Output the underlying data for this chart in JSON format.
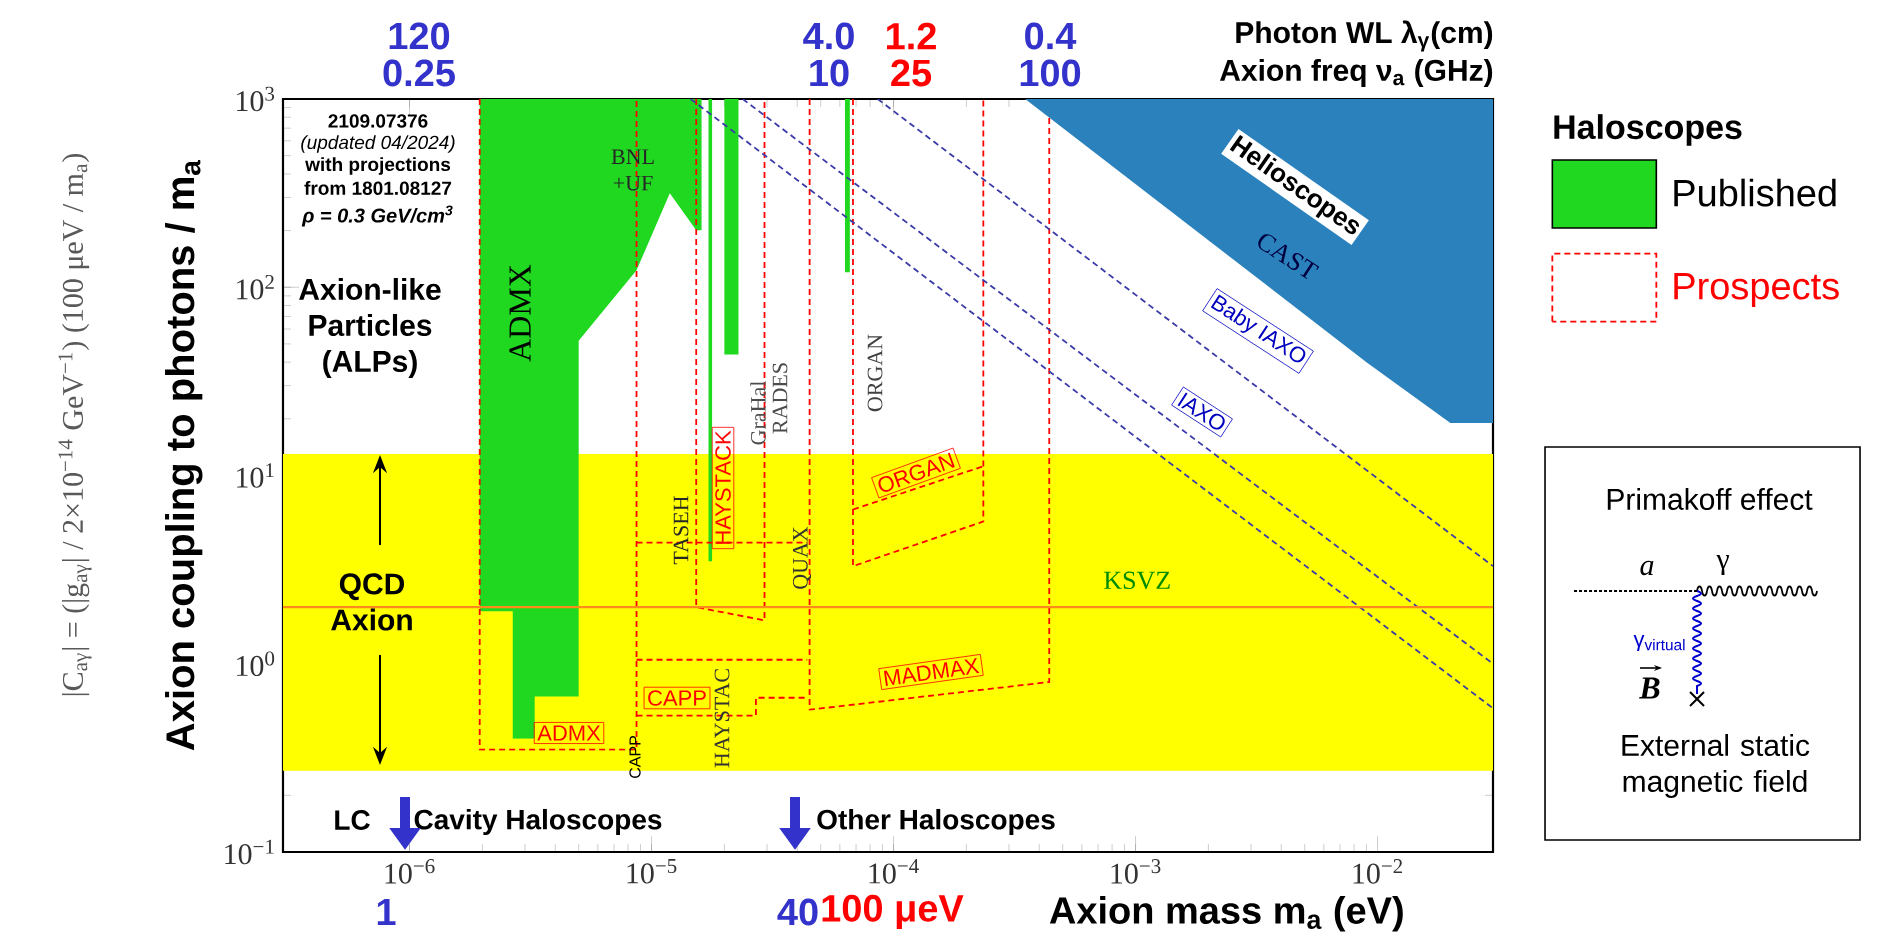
{
  "chart_data": {
    "type": "area",
    "xlabel": "Axion mass m$_{a}$ (eV)",
    "ylabel": "Axion coupling to photons / m$_{a}$",
    "legend_title": "Haloscopes",
    "legend": "right",
    "log": "xy",
    "marker": "none",
    "xlim": [
      3e-07,
      0.03
    ],
    "xticks": [
      {
        "value": 1e-06,
        "label": "10$^{−6}$"
      },
      {
        "value": 1e-05,
        "label": "10$^{−5}$"
      },
      {
        "value": 0.0001,
        "label": "10$^{−4}$"
      },
      {
        "value": 0.001,
        "label": "10$^{−3}$"
      },
      {
        "value": 0.01,
        "label": "10$^{−2}$"
      }
    ],
    "ylim": [
      0.1,
      1000
    ],
    "yticks": [
      {
        "value": 0.1,
        "label": "10$^{−1}$"
      },
      {
        "value": 1,
        "label": "10$^{0}$"
      },
      {
        "value": 10,
        "label": "10$^{1}$"
      },
      {
        "value": 100,
        "label": "10$^{2}$"
      },
      {
        "value": 1000,
        "label": "10$^{3}$"
      }
    ],
    "series": [
      {
        "name": "Published",
        "color": "#20d820",
        "x": [
          1.95e-06,
          1.95e-06,
          2.67e-06,
          2.67e-06,
          3.29e-06,
          3.29e-06,
          5e-06,
          5e-06,
          8.67e-06,
          1.19e-05,
          1.53e-05,
          1.61e-05,
          1.61e-05
        ],
        "values": [
          1000,
          1.9,
          1.9,
          0.4,
          0.4,
          0.67,
          0.67,
          52,
          123,
          316,
          201,
          201,
          1000
        ]
      },
      {
        "color": "#20d820",
        "x": [
          1.72e-05,
          1.72e-05,
          1.78e-05,
          1.78e-05
        ],
        "values": [
          1000,
          3.5,
          3.5,
          1000
        ]
      },
      {
        "color": "#20d820",
        "x": [
          2e-05,
          2e-05,
          2.29e-05,
          2.29e-05
        ],
        "values": [
          1000,
          44,
          44,
          1000
        ]
      },
      {
        "color": "#20d820",
        "x": [
          6.3e-05,
          6.3e-05,
          6.6e-05,
          6.6e-05
        ],
        "values": [
          1000,
          120,
          120,
          1000
        ]
      },
      {
        "color": "#2a81bc",
        "x": [
          0.00035,
          0.009,
          0.02,
          0.03,
          0.03
        ],
        "values": [
          1000,
          40,
          19,
          19,
          1000
        ]
      },
      {
        "name": "Prospects",
        "type": "line",
        "color": "#ff0000",
        "line_style": "dashed",
        "x": [
          1.95e-06,
          1.95e-06,
          8.67e-06,
          8.67e-06
        ],
        "values": [
          1000,
          0.35,
          0.35,
          1000
        ]
      },
      {
        "type": "line",
        "color": "#ff0000",
        "line_style": "dashed",
        "x": [
          8.67e-06,
          2.7e-05,
          2.7e-05,
          4.4e-05
        ],
        "values": [
          0.53,
          0.53,
          0.66,
          0.66
        ]
      },
      {
        "type": "line",
        "color": "#ff0000",
        "line_style": "dashed",
        "x": [
          8.67e-06,
          4.4e-05
        ],
        "values": [
          1.05,
          1.05
        ]
      },
      {
        "type": "line",
        "color": "#ff0000",
        "line_style": "dashed",
        "x": [
          8.67e-06,
          4.4e-05
        ],
        "values": [
          4.4,
          4.4
        ]
      },
      {
        "type": "line",
        "color": "#ff0000",
        "line_style": "dashed",
        "x": [
          1.53e-05,
          1.53e-05,
          2.93e-05,
          2.93e-05
        ],
        "values": [
          1000,
          2.0,
          1.7,
          1000
        ]
      },
      {
        "type": "line",
        "color": "#ff0000",
        "line_style": "dashed",
        "x": [
          4.5e-05,
          4.5e-05,
          0.00044,
          0.00044
        ],
        "values": [
          1000,
          0.57,
          0.8,
          800
        ]
      },
      {
        "type": "line",
        "color": "#ff0000",
        "line_style": "dashed",
        "x": [
          6.8e-05,
          6.8e-05,
          0.000235,
          0.000235
        ],
        "values": [
          1000,
          3.3,
          5.7,
          1000
        ]
      },
      {
        "type": "line",
        "color": "#ff0000",
        "line_style": "dashed",
        "x": [
          6.8e-05,
          0.000235
        ],
        "values": [
          6.6,
          11.2
        ]
      },
      {
        "type": "line",
        "color": "#3b3ba8",
        "line_style": "dashed",
        "x": [
          8.6e-05,
          0.03
        ],
        "values": [
          1000,
          3.3
        ]
      },
      {
        "type": "line",
        "color": "#3b3ba8",
        "line_style": "dashed",
        "x": [
          2.38e-05,
          0.03
        ],
        "values": [
          1000,
          1.0
        ]
      },
      {
        "type": "line",
        "color": "#3b3ba8",
        "line_style": "dashed",
        "x": [
          1.45e-05,
          0.03
        ],
        "values": [
          1000,
          0.58
        ]
      }
    ],
    "bands": [
      {
        "axis": "y",
        "from": 0.27,
        "to": 13,
        "color": "#ffff00"
      }
    ],
    "ref_lines": [
      {
        "axis": "y",
        "value": 2,
        "label": "KSVZ",
        "color": "#ff8c1a"
      }
    ],
    "annotations": [
      "ADMX",
      "BNL +UF",
      "TASEH",
      "HAYSTACK",
      "GraHal",
      "RADES",
      "QUAX",
      "ORGAN",
      "ORGAN",
      "MADMAX",
      "CAPP",
      "ADMX",
      "CAPP",
      "HAYSTAC",
      "CAST",
      "Helioscopes",
      "Baby IAXO",
      "IAXO",
      "2109.07376",
      "(updated 04/2024)",
      "with projections",
      "from 1801.08127",
      "ρ = 0.3 GeV/cm$^{3}$",
      "Axion-like Particles (ALPs)",
      "QCD Axion",
      "LC",
      "Cavity Haloscopes",
      "Other Haloscopes",
      "|C$_{aγ}$| = (|g$_{aγ}$| / 2×10$^{−14}$ GeV$^{−1}$) (100 μeV / m$_{a}$)",
      "Primakoff effect",
      "a",
      "γ",
      "γ$_{virtual}$",
      "B",
      "External static magnetic field",
      "120",
      "0.25",
      "4.0",
      "10",
      "1.2",
      "25",
      "0.4",
      "100",
      "1",
      "40",
      "100 μeV",
      "Photon WL  λ$_{γ}$(cm)",
      "Axion freq ν$_{a}$ (GHz)"
    ]
  }
}
